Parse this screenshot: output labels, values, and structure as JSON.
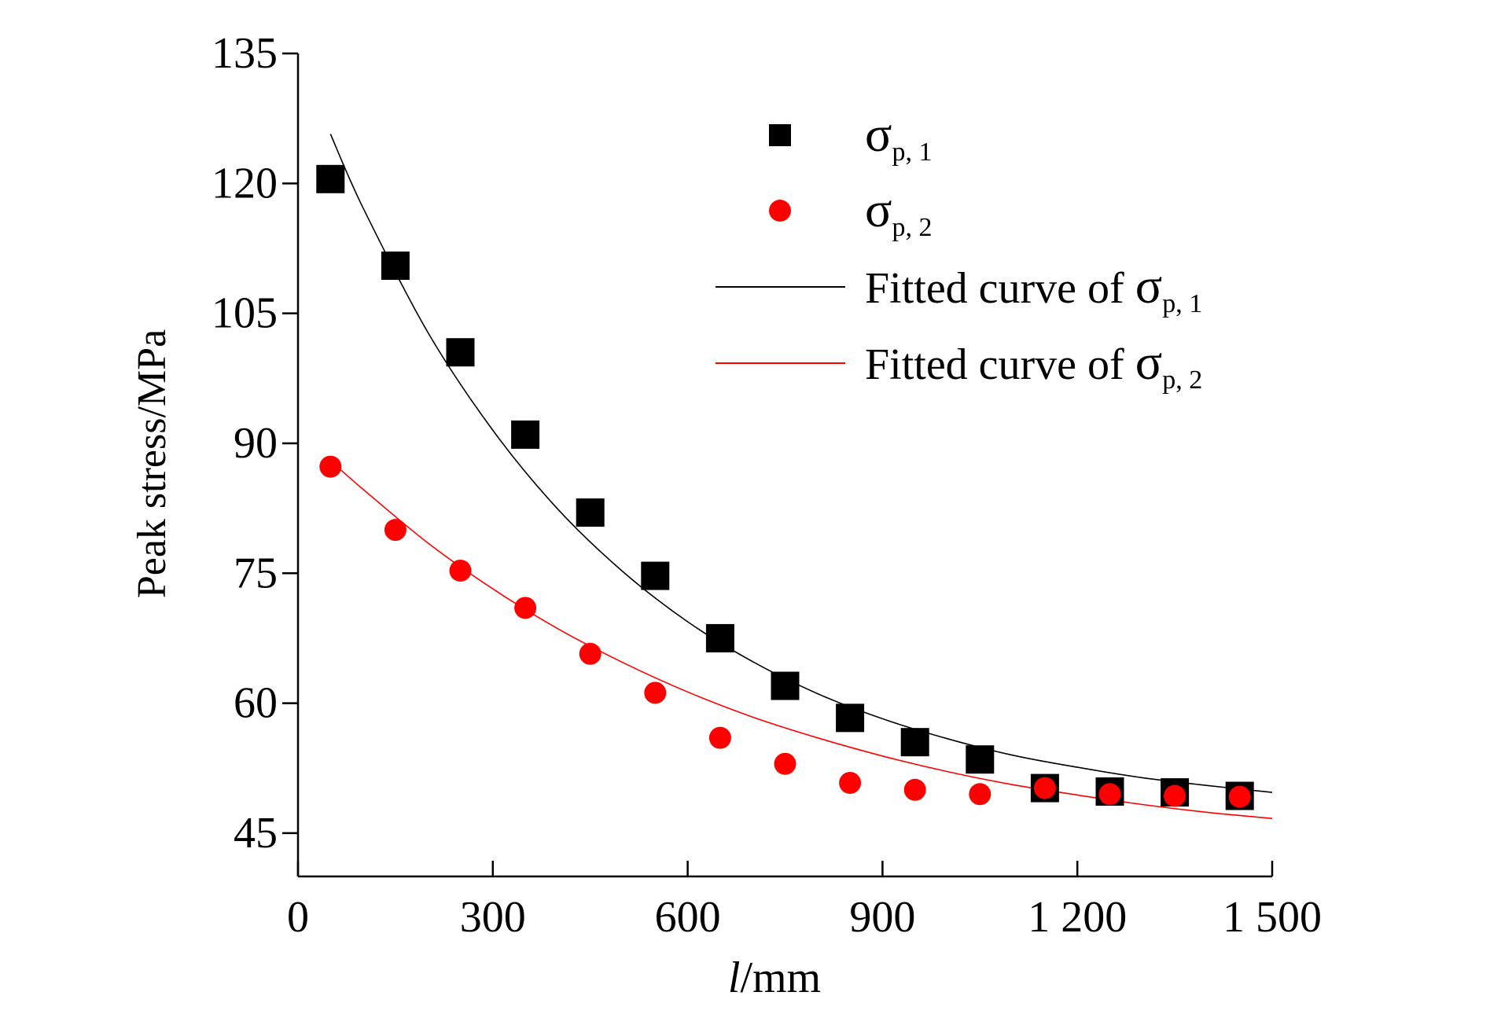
{
  "chart_data": {
    "type": "scatter",
    "xlabel_italic": "l",
    "xlabel_unit": "/mm",
    "ylabel": "Peak stress/MPa",
    "xlim": [
      0,
      1500
    ],
    "ylim": [
      40,
      135
    ],
    "xticks": [
      0,
      300,
      600,
      900,
      1200,
      1500
    ],
    "xtick_labels": [
      "0",
      "300",
      "600",
      "900",
      "1 200",
      "1 500"
    ],
    "yticks": [
      45,
      60,
      75,
      90,
      105,
      120,
      135
    ],
    "ytick_labels": [
      "45",
      "60",
      "75",
      "90",
      "105",
      "120",
      "135"
    ],
    "grid": false,
    "legend_position": "top-right",
    "series": [
      {
        "name": "σp, 1",
        "symbol": "σ",
        "subscript": "p, 1",
        "marker": "square",
        "color": "#000000",
        "x": [
          50,
          150,
          250,
          350,
          450,
          550,
          650,
          750,
          850,
          950,
          1050,
          1150,
          1250,
          1350,
          1450
        ],
        "y": [
          120.5,
          110.5,
          100.5,
          91,
          82,
          74.7,
          67.5,
          62,
          58.3,
          55.5,
          53.5,
          50.2,
          49.8,
          49.7,
          49.3
        ]
      },
      {
        "name": "σp, 2",
        "symbol": "σ",
        "subscript": "p, 2",
        "marker": "circle",
        "color": "#ff0000",
        "x": [
          50,
          150,
          250,
          350,
          450,
          550,
          650,
          750,
          850,
          950,
          1050,
          1150,
          1250,
          1350,
          1450
        ],
        "y": [
          87.3,
          80,
          75.3,
          71,
          65.7,
          61.2,
          56,
          53,
          50.8,
          50,
          49.5,
          50.2,
          49.5,
          49.3,
          49.2
        ]
      },
      {
        "name": "Fitted curve of σp, 1",
        "label_prefix": "Fitted curve of",
        "symbol": "σ",
        "subscript": "p, 1",
        "marker": "line",
        "color": "#000000",
        "x": [
          50,
          100,
          200,
          300,
          400,
          500,
          600,
          700,
          800,
          900,
          1000,
          1100,
          1200,
          1300,
          1400,
          1500
        ],
        "y": [
          125.7,
          117.2,
          102.8,
          91.5,
          82.4,
          75.2,
          69.4,
          64.8,
          61.1,
          58.2,
          55.9,
          54.0,
          52.6,
          51.4,
          50.5,
          49.7
        ]
      },
      {
        "name": "Fitted curve of σp, 2",
        "label_prefix": "Fitted curve of",
        "symbol": "σ",
        "subscript": "p, 2",
        "marker": "line",
        "color": "#ff0000",
        "x": [
          50,
          100,
          200,
          300,
          400,
          500,
          600,
          700,
          800,
          900,
          1000,
          1100,
          1200,
          1300,
          1400,
          1500
        ],
        "y": [
          88.0,
          84.7,
          78.5,
          73.2,
          68.6,
          64.7,
          61.3,
          58.4,
          56.0,
          53.9,
          52.1,
          50.6,
          49.4,
          48.3,
          47.4,
          46.7
        ]
      }
    ]
  }
}
